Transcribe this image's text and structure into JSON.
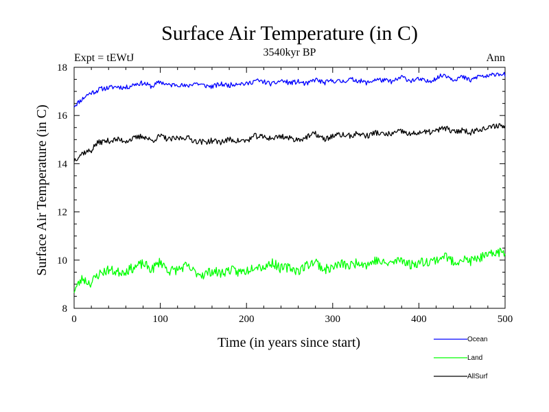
{
  "chart_data": {
    "type": "line",
    "title": "Surface Air Temperature (in C)",
    "subtitle_left": "Expt = tEWtJ",
    "subtitle_center": "3540kyr BP",
    "subtitle_right": "Ann",
    "xlabel": "Time (in years since start)",
    "ylabel": "Surface Air Temperature (in C)",
    "xlim": [
      0,
      500
    ],
    "ylim": [
      8,
      18
    ],
    "xticks": [
      0,
      100,
      200,
      300,
      400,
      500
    ],
    "xtick_labels": [
      "0",
      "100",
      "200",
      "300",
      "400",
      "500"
    ],
    "yticks": [
      8,
      10,
      12,
      14,
      16,
      18
    ],
    "ytick_labels": [
      "8",
      "10",
      "12",
      "14",
      "16",
      "18"
    ],
    "grid": false,
    "legend_position": "bottom-right, below plot",
    "series": [
      {
        "name": "Ocean",
        "color": "#0000ff",
        "x": [
          0,
          5,
          10,
          15,
          20,
          25,
          30,
          40,
          50,
          60,
          70,
          80,
          90,
          100,
          110,
          120,
          130,
          140,
          150,
          160,
          170,
          180,
          190,
          200,
          210,
          220,
          230,
          240,
          250,
          260,
          270,
          280,
          290,
          300,
          310,
          320,
          330,
          340,
          350,
          360,
          370,
          380,
          390,
          400,
          410,
          420,
          430,
          440,
          450,
          460,
          470,
          480,
          490,
          500
        ],
        "values": [
          16.4,
          16.55,
          16.7,
          16.85,
          16.95,
          17.0,
          17.1,
          17.15,
          17.2,
          17.15,
          17.3,
          17.35,
          17.2,
          17.4,
          17.25,
          17.3,
          17.2,
          17.35,
          17.25,
          17.2,
          17.3,
          17.25,
          17.35,
          17.3,
          17.45,
          17.4,
          17.3,
          17.45,
          17.35,
          17.4,
          17.3,
          17.5,
          17.35,
          17.45,
          17.4,
          17.5,
          17.45,
          17.35,
          17.5,
          17.45,
          17.4,
          17.6,
          17.45,
          17.5,
          17.4,
          17.55,
          17.7,
          17.5,
          17.6,
          17.45,
          17.65,
          17.6,
          17.75,
          17.7
        ]
      },
      {
        "name": "Land",
        "color": "#00ff00",
        "x": [
          0,
          5,
          10,
          15,
          20,
          25,
          30,
          40,
          50,
          60,
          70,
          80,
          90,
          100,
          110,
          120,
          130,
          140,
          150,
          160,
          170,
          180,
          190,
          200,
          210,
          220,
          230,
          240,
          250,
          260,
          270,
          280,
          290,
          300,
          310,
          320,
          330,
          340,
          350,
          360,
          370,
          380,
          390,
          400,
          410,
          420,
          430,
          440,
          450,
          460,
          470,
          480,
          490,
          500
        ],
        "values": [
          8.75,
          9.0,
          9.25,
          9.1,
          9.05,
          9.3,
          9.45,
          9.6,
          9.5,
          9.55,
          9.7,
          9.85,
          9.6,
          9.95,
          9.55,
          9.6,
          9.75,
          9.5,
          9.4,
          9.55,
          9.45,
          9.6,
          9.5,
          9.55,
          9.8,
          9.7,
          9.9,
          9.65,
          9.7,
          9.55,
          9.8,
          9.95,
          9.6,
          9.7,
          9.85,
          9.75,
          9.95,
          9.8,
          10.0,
          9.85,
          9.9,
          10.05,
          9.8,
          9.9,
          9.95,
          10.0,
          10.2,
          9.9,
          10.05,
          9.95,
          10.1,
          10.15,
          10.35,
          10.3
        ]
      },
      {
        "name": "AllSurf",
        "color": "#000000",
        "x": [
          0,
          5,
          10,
          15,
          20,
          25,
          30,
          40,
          50,
          60,
          70,
          80,
          90,
          100,
          110,
          120,
          130,
          140,
          150,
          160,
          170,
          180,
          190,
          200,
          210,
          220,
          230,
          240,
          250,
          260,
          270,
          280,
          290,
          300,
          310,
          320,
          330,
          340,
          350,
          360,
          370,
          380,
          390,
          400,
          410,
          420,
          430,
          440,
          450,
          460,
          470,
          480,
          490,
          500
        ],
        "values": [
          14.15,
          14.3,
          14.45,
          14.5,
          14.55,
          14.8,
          14.9,
          14.95,
          15.0,
          14.95,
          15.05,
          15.15,
          14.95,
          15.15,
          15.0,
          15.05,
          15.1,
          14.95,
          14.9,
          14.95,
          14.9,
          15.0,
          14.95,
          14.95,
          15.15,
          15.1,
          15.05,
          15.15,
          15.05,
          15.0,
          15.1,
          15.25,
          15.0,
          15.15,
          15.2,
          15.15,
          15.25,
          15.15,
          15.3,
          15.2,
          15.25,
          15.35,
          15.2,
          15.3,
          15.3,
          15.35,
          15.5,
          15.3,
          15.4,
          15.3,
          15.45,
          15.45,
          15.6,
          15.55
        ]
      }
    ]
  }
}
